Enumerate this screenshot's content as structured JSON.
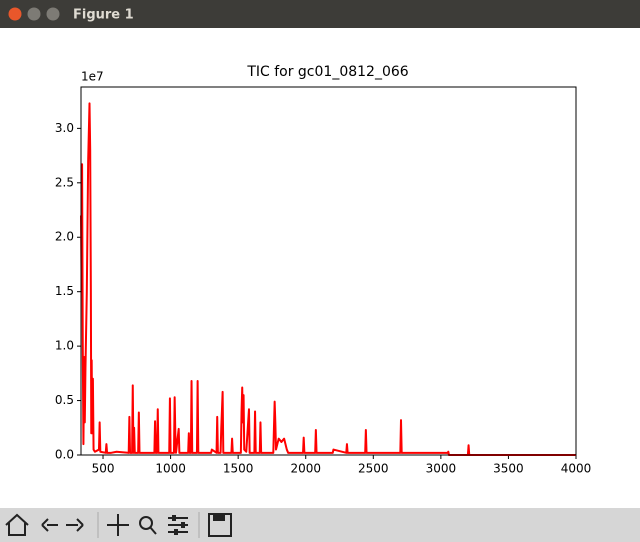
{
  "window_title": "Figure 1",
  "chart_data": {
    "type": "line",
    "title": "TIC for gc01_0812_066",
    "y_offset_label": "1e7",
    "color": "#ff0000",
    "x": [
      337,
      342,
      345,
      350,
      355,
      360,
      365,
      370,
      380,
      390,
      400,
      405,
      410,
      413,
      416,
      420,
      425,
      430,
      440,
      470,
      475,
      480,
      520,
      525,
      530,
      560,
      600,
      690,
      695,
      700,
      715,
      720,
      725,
      730,
      735,
      760,
      765,
      770,
      880,
      885,
      890,
      900,
      905,
      910,
      990,
      995,
      1000,
      1025,
      1030,
      1035,
      1040,
      1060,
      1065,
      1130,
      1135,
      1140,
      1150,
      1155,
      1160,
      1195,
      1200,
      1205,
      1300,
      1305,
      1340,
      1345,
      1350,
      1370,
      1375,
      1380,
      1385,
      1390,
      1450,
      1455,
      1460,
      1520,
      1525,
      1530,
      1535,
      1540,
      1545,
      1560,
      1580,
      1585,
      1620,
      1625,
      1630,
      1660,
      1665,
      1670,
      1760,
      1770,
      1775,
      1780,
      1800,
      1820,
      1840,
      1860,
      1870,
      1980,
      1985,
      1990,
      2070,
      2075,
      2080,
      2200,
      2205,
      2300,
      2305,
      2310,
      2440,
      2445,
      2450,
      2700,
      2705,
      2710,
      3050,
      3055,
      3060,
      3200,
      3205,
      3210,
      4000
    ],
    "values": [
      2.2,
      1.5,
      2.67,
      1.0,
      0.1,
      0.9,
      0.3,
      0.8,
      1.5,
      2.7,
      3.23,
      2.8,
      1.5,
      0.2,
      0.87,
      0.2,
      0.7,
      0.05,
      0.03,
      0.05,
      0.3,
      0.03,
      0.02,
      0.1,
      0.02,
      0.02,
      0.03,
      0.02,
      0.35,
      0.02,
      0.02,
      0.64,
      0.02,
      0.25,
      0.02,
      0.02,
      0.39,
      0.02,
      0.02,
      0.31,
      0.02,
      0.02,
      0.42,
      0.02,
      0.02,
      0.52,
      0.02,
      0.02,
      0.53,
      0.2,
      0.02,
      0.24,
      0.02,
      0.02,
      0.2,
      0.02,
      0.02,
      0.68,
      0.02,
      0.02,
      0.68,
      0.02,
      0.02,
      0.05,
      0.02,
      0.35,
      0.02,
      0.02,
      0.25,
      0.41,
      0.58,
      0.02,
      0.02,
      0.15,
      0.02,
      0.02,
      0.4,
      0.62,
      0.3,
      0.55,
      0.05,
      0.03,
      0.42,
      0.02,
      0.02,
      0.4,
      0.02,
      0.02,
      0.3,
      0.02,
      0.02,
      0.49,
      0.3,
      0.05,
      0.15,
      0.12,
      0.15,
      0.05,
      0.02,
      0.02,
      0.16,
      0.02,
      0.02,
      0.23,
      0.02,
      0.02,
      0.05,
      0.02,
      0.1,
      0.02,
      0.02,
      0.23,
      0.02,
      0.02,
      0.32,
      0.02,
      0.02,
      0.03,
      0,
      0,
      0.09,
      0,
      0
    ],
    "xlim": [
      337,
      4000
    ],
    "xticks": [
      500,
      1000,
      1500,
      2000,
      2500,
      3000,
      3500,
      4000
    ],
    "ylim": [
      0,
      3.38
    ],
    "yticks": [
      {
        "value": 0,
        "label": "0.0"
      },
      0.5,
      {
        "value": 1,
        "label": "1.0"
      },
      1.5,
      {
        "value": 2,
        "label": "2.0"
      },
      2.5,
      {
        "value": 3,
        "label": "3.0"
      }
    ]
  }
}
